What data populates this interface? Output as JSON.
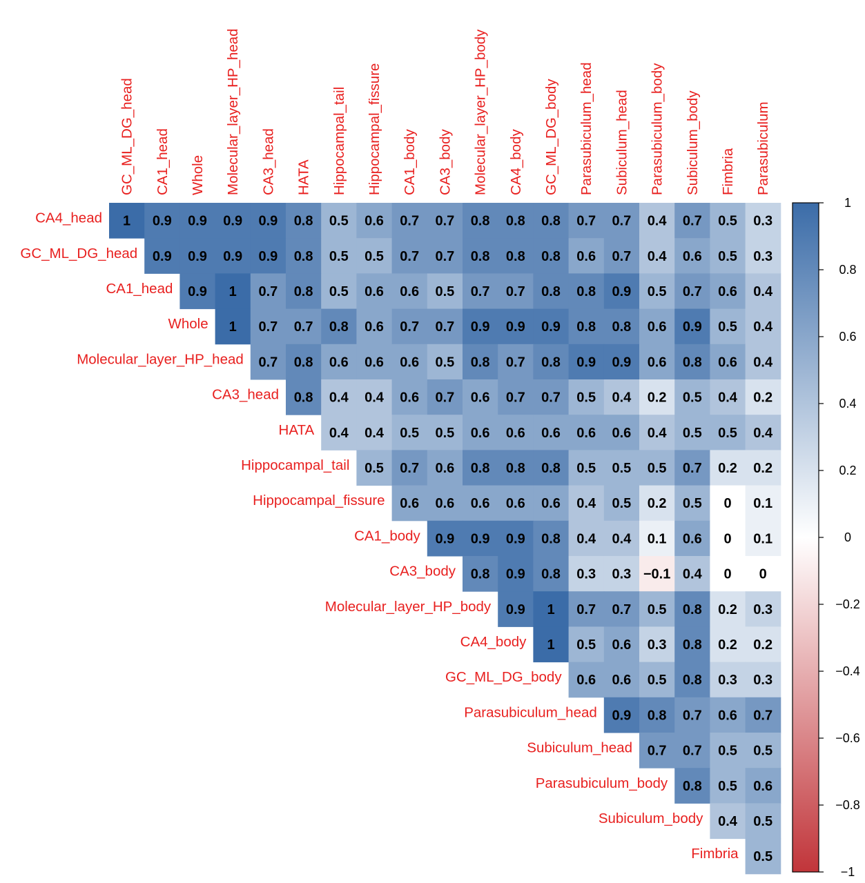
{
  "chart_data": {
    "type": "heatmap",
    "layout": "upper-triangular correlation matrix",
    "labels": [
      "CA4_head",
      "GC_ML_DG_head",
      "CA1_head",
      "Whole",
      "Molecular_layer_HP_head",
      "CA3_head",
      "HATA",
      "Hippocampal_tail",
      "Hippocampal_fissure",
      "CA1_body",
      "CA3_body",
      "Molecular_layer_HP_body",
      "CA4_body",
      "GC_ML_DG_body",
      "Parasubiculum_head",
      "Subiculum_head",
      "Parasubiculum_body",
      "Subiculum_body",
      "Fimbria",
      "Parasubiculum"
    ],
    "matrix": [
      [
        1,
        0.9,
        0.9,
        0.9,
        0.9,
        0.8,
        0.5,
        0.6,
        0.7,
        0.7,
        0.8,
        0.8,
        0.8,
        0.7,
        0.7,
        0.4,
        0.7,
        0.5,
        0.3
      ],
      [
        0.9,
        0.9,
        0.9,
        0.9,
        0.8,
        0.5,
        0.5,
        0.7,
        0.7,
        0.8,
        0.8,
        0.8,
        0.6,
        0.7,
        0.4,
        0.6,
        0.5,
        0.3
      ],
      [
        0.9,
        1,
        0.7,
        0.8,
        0.5,
        0.6,
        0.6,
        0.5,
        0.7,
        0.7,
        0.8,
        0.8,
        0.9,
        0.5,
        0.7,
        0.6,
        0.4
      ],
      [
        1,
        0.7,
        0.7,
        0.8,
        0.6,
        0.7,
        0.7,
        0.9,
        0.9,
        0.9,
        0.8,
        0.8,
        0.6,
        0.9,
        0.5,
        0.4
      ],
      [
        0.7,
        0.8,
        0.6,
        0.6,
        0.6,
        0.5,
        0.8,
        0.7,
        0.8,
        0.9,
        0.9,
        0.6,
        0.8,
        0.6,
        0.4
      ],
      [
        0.8,
        0.4,
        0.4,
        0.6,
        0.7,
        0.6,
        0.7,
        0.7,
        0.5,
        0.4,
        0.2,
        0.5,
        0.4,
        0.2
      ],
      [
        0.4,
        0.4,
        0.5,
        0.5,
        0.6,
        0.6,
        0.6,
        0.6,
        0.6,
        0.4,
        0.5,
        0.5,
        0.4
      ],
      [
        0.5,
        0.7,
        0.6,
        0.8,
        0.8,
        0.8,
        0.5,
        0.5,
        0.5,
        0.7,
        0.2,
        0.2
      ],
      [
        0.6,
        0.6,
        0.6,
        0.6,
        0.6,
        0.4,
        0.5,
        0.2,
        0.5,
        0,
        0.1
      ],
      [
        0.9,
        0.9,
        0.9,
        0.8,
        0.4,
        0.4,
        0.1,
        0.6,
        0,
        0.1
      ],
      [
        0.8,
        0.9,
        0.8,
        0.3,
        0.3,
        -0.1,
        0.4,
        0,
        0
      ],
      [
        0.9,
        1,
        0.7,
        0.7,
        0.5,
        0.8,
        0.2,
        0.3
      ],
      [
        1,
        0.5,
        0.6,
        0.3,
        0.8,
        0.2,
        0.2
      ],
      [
        0.6,
        0.6,
        0.5,
        0.8,
        0.3,
        0.3
      ],
      [
        0.9,
        0.8,
        0.7,
        0.6,
        0.7
      ],
      [
        0.7,
        0.7,
        0.5,
        0.5
      ],
      [
        0.8,
        0.5,
        0.6
      ],
      [
        0.4,
        0.5
      ],
      [
        0.5
      ]
    ],
    "value_labels": [
      [
        "1",
        "0.9",
        "0.9",
        "0.9",
        "0.9",
        "0.8",
        "0.5",
        "0.6",
        "0.7",
        "0.7",
        "0.8",
        "0.8",
        "0.8",
        "0.7",
        "0.7",
        "0.4",
        "0.7",
        "0.5",
        "0.3"
      ],
      [
        "0.9",
        "0.9",
        "0.9",
        "0.9",
        "0.8",
        "0.5",
        "0.5",
        "0.7",
        "0.7",
        "0.8",
        "0.8",
        "0.8",
        "0.6",
        "0.7",
        "0.4",
        "0.6",
        "0.5",
        "0.3"
      ],
      [
        "0.9",
        "1",
        "0.7",
        "0.8",
        "0.5",
        "0.6",
        "0.6",
        "0.5",
        "0.7",
        "0.7",
        "0.8",
        "0.8",
        "0.9",
        "0.5",
        "0.7",
        "0.6",
        "0.4"
      ],
      [
        "1",
        "0.7",
        "0.7",
        "0.8",
        "0.6",
        "0.7",
        "0.7",
        "0.9",
        "0.9",
        "0.9",
        "0.8",
        "0.8",
        "0.6",
        "0.9",
        "0.5",
        "0.4"
      ],
      [
        "0.7",
        "0.8",
        "0.6",
        "0.6",
        "0.6",
        "0.5",
        "0.8",
        "0.7",
        "0.8",
        "0.9",
        "0.9",
        "0.6",
        "0.8",
        "0.6",
        "0.4"
      ],
      [
        "0.8",
        "0.4",
        "0.4",
        "0.6",
        "0.7",
        "0.6",
        "0.7",
        "0.7",
        "0.5",
        "0.4",
        "0.2",
        "0.5",
        "0.4",
        "0.2"
      ],
      [
        "0.4",
        "0.4",
        "0.5",
        "0.5",
        "0.6",
        "0.6",
        "0.6",
        "0.6",
        "0.6",
        "0.4",
        "0.5",
        "0.5",
        "0.4"
      ],
      [
        "0.5",
        "0.7",
        "0.6",
        "0.8",
        "0.8",
        "0.8",
        "0.5",
        "0.5",
        "0.5",
        "0.7",
        "0.2",
        "0.2"
      ],
      [
        "0.6",
        "0.6",
        "0.6",
        "0.6",
        "0.6",
        "0.4",
        "0.5",
        "0.2",
        "0.5",
        "0",
        "0.1"
      ],
      [
        "0.9",
        "0.9",
        "0.9",
        "0.8",
        "0.4",
        "0.4",
        "0.1",
        "0.6",
        "0",
        "0.1"
      ],
      [
        "0.8",
        "0.9",
        "0.8",
        "0.3",
        "0.3",
        "−0.1",
        "0.4",
        "0",
        "0"
      ],
      [
        "0.9",
        "1",
        "0.7",
        "0.7",
        "0.5",
        "0.8",
        "0.2",
        "0.3"
      ],
      [
        "1",
        "0.5",
        "0.6",
        "0.3",
        "0.8",
        "0.2",
        "0.2"
      ],
      [
        "0.6",
        "0.6",
        "0.5",
        "0.8",
        "0.3",
        "0.3"
      ],
      [
        "0.9",
        "0.8",
        "0.7",
        "0.6",
        "0.7"
      ],
      [
        "0.7",
        "0.7",
        "0.5",
        "0.5"
      ],
      [
        "0.8",
        "0.5",
        "0.6"
      ],
      [
        "0.4",
        "0.5"
      ],
      [
        "0.5"
      ]
    ],
    "colorbar": {
      "range": [
        -1,
        1
      ],
      "ticks": [
        1,
        0.8,
        0.6,
        0.4,
        0.2,
        0,
        -0.2,
        -0.4,
        -0.6,
        -0.8,
        -1
      ],
      "tick_labels": [
        "1",
        "0.8",
        "0.6",
        "0.4",
        "0.2",
        "0",
        "−0.2",
        "−0.4",
        "−0.6",
        "−0.8",
        "−1"
      ],
      "negative_color": "#c1353a",
      "zero_color": "#ffffff",
      "positive_color": "#3b6ca8"
    },
    "label_color": "#e8201f",
    "value_color": "#000000"
  }
}
